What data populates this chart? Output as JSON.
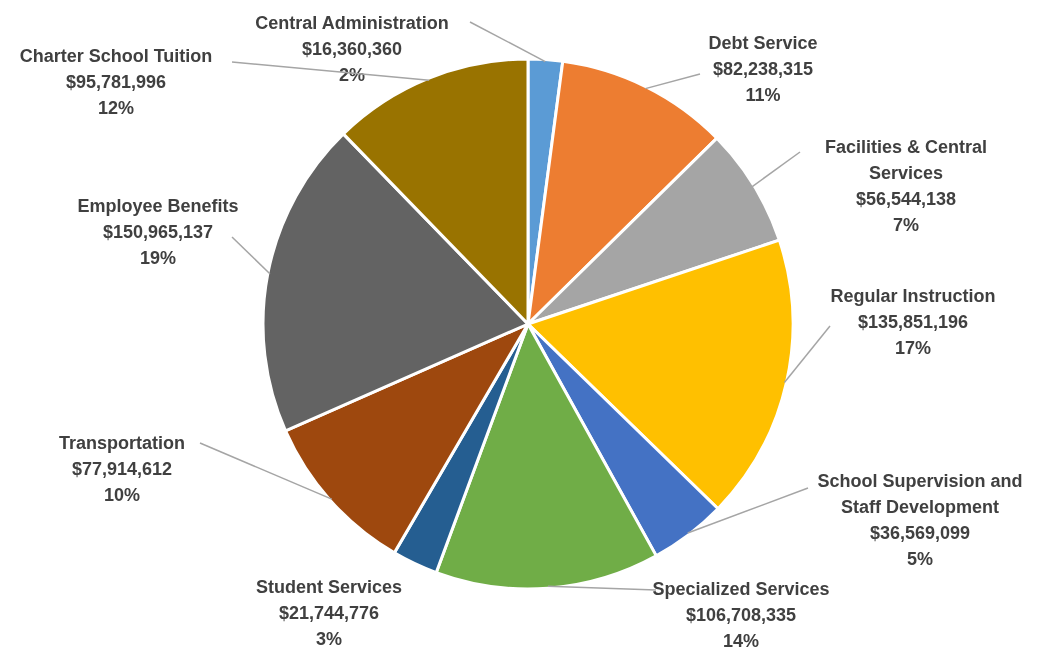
{
  "chart_data": {
    "type": "pie",
    "categories": [
      "Central Administration",
      "Debt Service",
      "Facilities & Central Services",
      "Regular Instruction",
      "School Supervision and Staff Development",
      "Specialized Services",
      "Student Services",
      "Transportation",
      "Employee Benefits",
      "Charter School Tuition"
    ],
    "values": [
      16360360,
      82238315,
      56544138,
      135851196,
      36569099,
      106708335,
      21744776,
      77914612,
      150965137,
      95781996
    ],
    "colors": [
      "#5b9bd5",
      "#ed7d31",
      "#a5a5a5",
      "#ffc000",
      "#4472c4",
      "#70ad47",
      "#255e91",
      "#9e480e",
      "#636363",
      "#997300"
    ],
    "value_labels": [
      "$16,360,360\n2%",
      "$82,238,315\n11%",
      "$56,544,138\n7%",
      "$135,851,196\n17%",
      "$36,569,099\n5%",
      "$106,708,335\n14%",
      "$21,744,776\n3%",
      "$77,914,612\n10%",
      "$150,965,137\n19%",
      "$95,781,996\n12%"
    ]
  }
}
